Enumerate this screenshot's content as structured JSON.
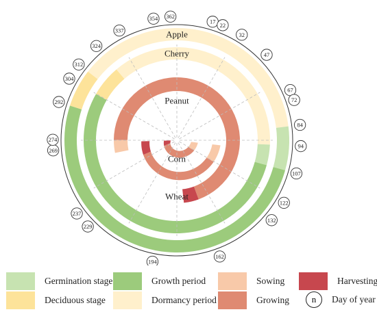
{
  "colors": {
    "germination": "#c7e3b1",
    "growth": "#9ccb7c",
    "deciduous": "#fde39a",
    "dormancy": "#fff0cc",
    "sowing": "#f8c9a9",
    "growing": "#df8a72",
    "harvesting": "#c7474e"
  },
  "crops": [
    {
      "name": "Apple",
      "segments": [
        {
          "phase": "dormancy",
          "start": 312,
          "end": 84
        },
        {
          "phase": "germination",
          "start": 84,
          "end": 107
        },
        {
          "phase": "growth",
          "start": 107,
          "end": 292
        },
        {
          "phase": "deciduous",
          "start": 292,
          "end": 312
        }
      ]
    },
    {
      "name": "Cherry",
      "segments": [
        {
          "phase": "dormancy",
          "start": 324,
          "end": 94
        },
        {
          "phase": "germination",
          "start": 94,
          "end": 107
        },
        {
          "phase": "growth",
          "start": 107,
          "end": 304
        },
        {
          "phase": "deciduous",
          "start": 304,
          "end": 324
        }
      ]
    },
    {
      "name": "Wheat",
      "segments": [
        {
          "phase": "growing",
          "start": 274,
          "end": 162
        },
        {
          "phase": "sowing",
          "start": 262,
          "end": 274
        },
        {
          "phase": "harvesting",
          "start": 162,
          "end": 176
        }
      ]
    },
    {
      "name": "Peanut",
      "segments": [
        {
          "phase": "growing",
          "start": 122,
          "end": 250
        },
        {
          "phase": "sowing",
          "start": 98,
          "end": 122
        },
        {
          "phase": "harvesting",
          "start": 250,
          "end": 272
        }
      ]
    },
    {
      "name": "Corn",
      "segments": [
        {
          "phase": "growing",
          "start": 122,
          "end": 250
        },
        {
          "phase": "sowing",
          "start": 98,
          "end": 122
        },
        {
          "phase": "harvesting",
          "start": 250,
          "end": 272
        }
      ]
    }
  ],
  "day_markers": [
    17,
    22,
    32,
    47,
    67,
    72,
    84,
    94,
    107,
    122,
    132,
    162,
    194,
    229,
    237,
    269,
    274,
    292,
    304,
    312,
    324,
    337,
    354,
    362
  ],
  "legend": [
    {
      "key": "germination",
      "label": "Germination stage"
    },
    {
      "key": "growth",
      "label": "Growth period"
    },
    {
      "key": "sowing",
      "label": "Sowing"
    },
    {
      "key": "harvesting",
      "label": "Harvesting"
    },
    {
      "key": "deciduous",
      "label": "Deciduous stage"
    },
    {
      "key": "dormancy",
      "label": "Dormancy period"
    },
    {
      "key": "growing",
      "label": "Growing"
    },
    {
      "key": "day",
      "label": "Day of year",
      "symbol": "n"
    }
  ]
}
